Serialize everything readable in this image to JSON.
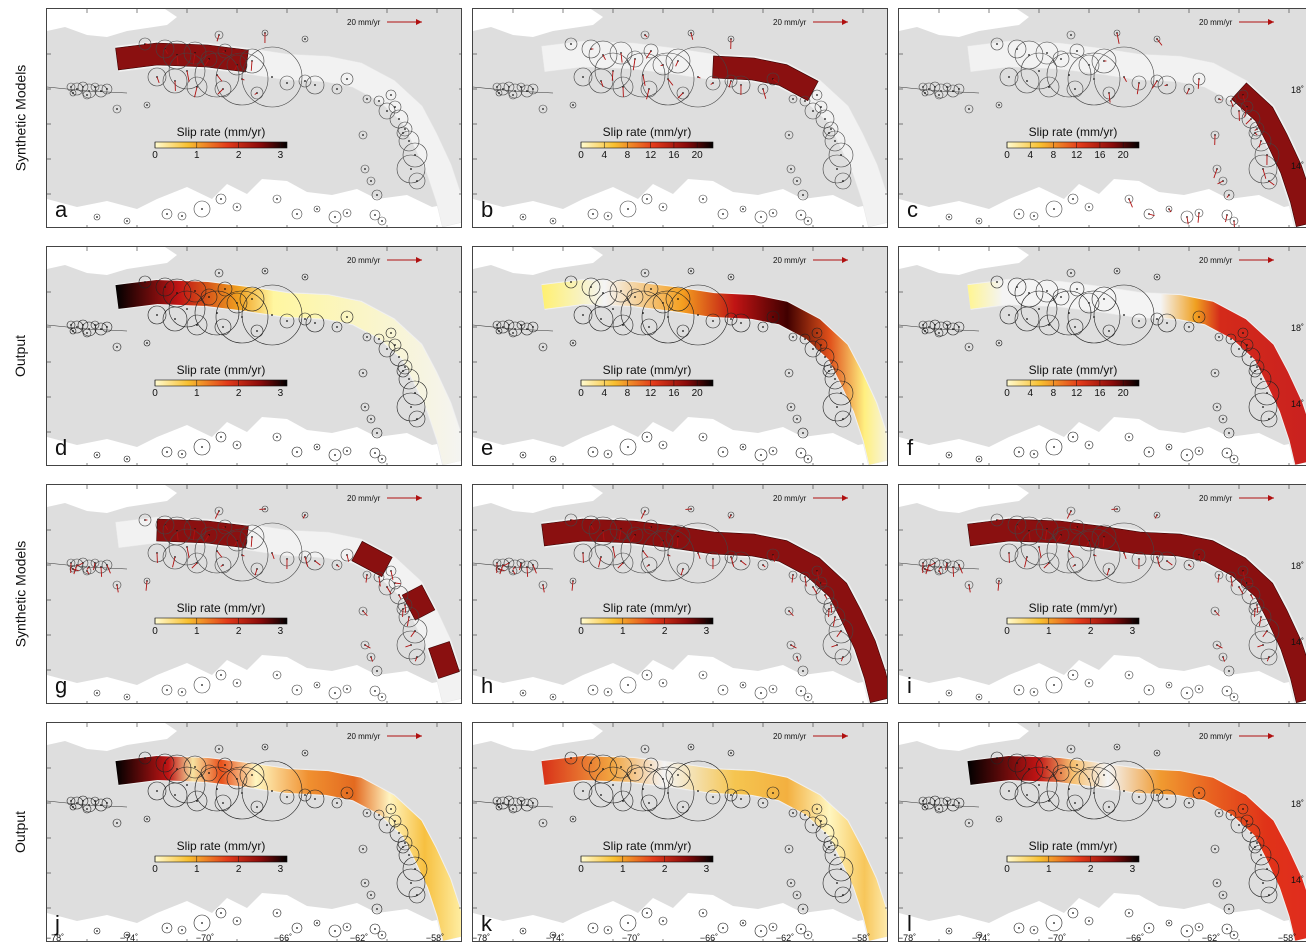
{
  "row_labels": [
    "Synthetic Models",
    "Output",
    "Synthetic Models",
    "Output"
  ],
  "scale_arrow_label": "20 mm/yr",
  "colorbar_title": "Slip rate (mm/yr)",
  "colors": {
    "background": "#dedede",
    "land": "#ffffff",
    "arrow": "#b01010",
    "slip_low": "#fff8b0",
    "slip_mid": "#e8401a",
    "slip_high": "#000000",
    "synthetic_fill": "#8a1010"
  },
  "latitude_labels": [
    "18˚",
    "14˚"
  ],
  "longitude_labels": [
    "−78˚",
    "−74˚",
    "−70˚",
    "−66˚",
    "−62˚",
    "−58˚"
  ],
  "panels": [
    {
      "letter": "a",
      "row": 0,
      "col": 0,
      "ticks": [
        "0",
        "1",
        "2",
        "3"
      ],
      "mode": "synthetic",
      "segment": "west",
      "show_lat": false,
      "show_lon": false
    },
    {
      "letter": "b",
      "row": 0,
      "col": 1,
      "ticks": [
        "0",
        "4",
        "8",
        "12",
        "16",
        "20"
      ],
      "mode": "synthetic",
      "segment": "central",
      "show_lat": false,
      "show_lon": false
    },
    {
      "letter": "c",
      "row": 0,
      "col": 2,
      "ticks": [
        "0",
        "4",
        "8",
        "12",
        "16",
        "20"
      ],
      "mode": "synthetic",
      "segment": "east",
      "show_lat": true,
      "show_lon": false
    },
    {
      "letter": "d",
      "row": 1,
      "col": 0,
      "ticks": [
        "0",
        "1",
        "2",
        "3"
      ],
      "mode": "output",
      "segment": "west",
      "show_lat": false,
      "show_lon": false
    },
    {
      "letter": "e",
      "row": 1,
      "col": 1,
      "ticks": [
        "0",
        "4",
        "8",
        "12",
        "16",
        "20"
      ],
      "mode": "output",
      "segment": "central",
      "show_lat": false,
      "show_lon": false
    },
    {
      "letter": "f",
      "row": 1,
      "col": 2,
      "ticks": [
        "0",
        "4",
        "8",
        "12",
        "16",
        "20"
      ],
      "mode": "output",
      "segment": "east",
      "show_lat": true,
      "show_lon": false
    },
    {
      "letter": "g",
      "row": 2,
      "col": 0,
      "ticks": [
        "0",
        "1",
        "2",
        "3"
      ],
      "mode": "synthetic",
      "segment": "patches",
      "show_lat": false,
      "show_lon": false
    },
    {
      "letter": "h",
      "row": 2,
      "col": 1,
      "ticks": [
        "0",
        "1",
        "2",
        "3"
      ],
      "mode": "synthetic",
      "segment": "full",
      "show_lat": false,
      "show_lon": false
    },
    {
      "letter": "i",
      "row": 2,
      "col": 2,
      "ticks": [
        "0",
        "1",
        "2",
        "3"
      ],
      "mode": "synthetic",
      "segment": "full",
      "show_lat": true,
      "show_lon": false
    },
    {
      "letter": "j",
      "row": 3,
      "col": 0,
      "ticks": [
        "0",
        "1",
        "2",
        "3"
      ],
      "mode": "output",
      "segment": "patches",
      "show_lat": false,
      "show_lon": true
    },
    {
      "letter": "k",
      "row": 3,
      "col": 1,
      "ticks": [
        "0",
        "1",
        "2",
        "3"
      ],
      "mode": "output",
      "segment": "full_light",
      "show_lat": false,
      "show_lon": true
    },
    {
      "letter": "l",
      "row": 3,
      "col": 2,
      "ticks": [
        "0",
        "1",
        "2",
        "3"
      ],
      "mode": "output",
      "segment": "full_strong",
      "show_lat": true,
      "show_lon": true
    }
  ]
}
